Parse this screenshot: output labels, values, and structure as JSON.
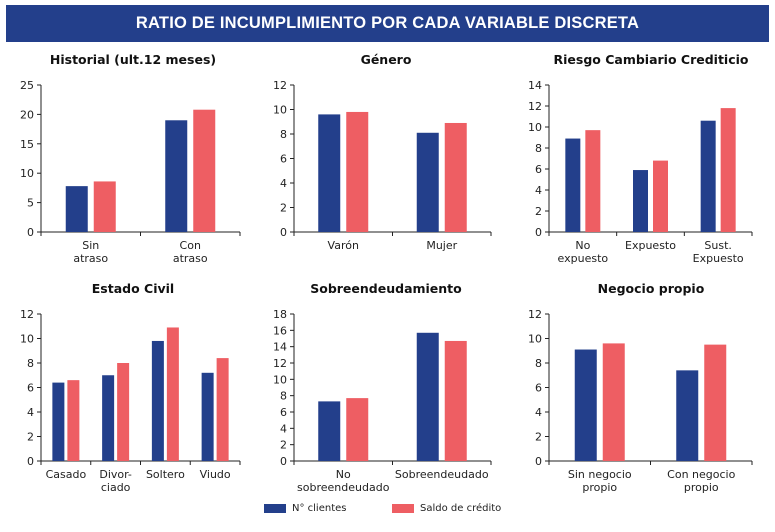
{
  "header": {
    "title": "RATIO DE INCUMPLIMIENTO POR CADA VARIABLE DISCRETA"
  },
  "legend": {
    "series1": "N° clientes",
    "series2": "Saldo de crédito",
    "color1": "#233f8b",
    "color2": "#ee5e63"
  },
  "chart_data": [
    {
      "type": "bar",
      "title": "Historial (ult.12 meses)",
      "categories": [
        [
          "Sin",
          "atraso"
        ],
        [
          "Con",
          "atraso"
        ]
      ],
      "yticks": [
        "0",
        "5",
        "10",
        "15",
        "20",
        "25"
      ],
      "ylim": [
        0,
        25
      ],
      "series": [
        {
          "name": "N° clientes",
          "values": [
            7.8,
            19.0
          ]
        },
        {
          "name": "Saldo de crédito",
          "values": [
            8.6,
            20.8
          ]
        }
      ]
    },
    {
      "type": "bar",
      "title": "Género",
      "categories": [
        [
          "Varón"
        ],
        [
          "Mujer"
        ]
      ],
      "yticks": [
        "0",
        "2",
        "4",
        "6",
        "8",
        "10",
        "12"
      ],
      "ylim": [
        0,
        12
      ],
      "series": [
        {
          "name": "N° clientes",
          "values": [
            9.6,
            8.1
          ]
        },
        {
          "name": "Saldo de crédito",
          "values": [
            9.8,
            8.9
          ]
        }
      ]
    },
    {
      "type": "bar",
      "title": "Riesgo Cambiario Crediticio",
      "categories": [
        [
          "No",
          "expuesto"
        ],
        [
          "Expuesto"
        ],
        [
          "Sust.",
          "Expuesto"
        ]
      ],
      "yticks": [
        "0",
        "2",
        "4",
        "6",
        "8",
        "10",
        "12",
        "14"
      ],
      "ylim": [
        0,
        14
      ],
      "series": [
        {
          "name": "N° clientes",
          "values": [
            8.9,
            5.9,
            10.6
          ]
        },
        {
          "name": "Saldo de crédito",
          "values": [
            9.7,
            6.8,
            11.8
          ]
        }
      ]
    },
    {
      "type": "bar",
      "title": "Estado Civil",
      "categories": [
        [
          "Casado"
        ],
        [
          "Divor-",
          "ciado"
        ],
        [
          "Soltero"
        ],
        [
          "Viudo"
        ]
      ],
      "yticks": [
        "0",
        "2",
        "4",
        "6",
        "8",
        "10",
        "12"
      ],
      "ylim": [
        0,
        12
      ],
      "series": [
        {
          "name": "N° clientes",
          "values": [
            6.4,
            7.0,
            9.8,
            7.2
          ]
        },
        {
          "name": "Saldo de crédito",
          "values": [
            6.6,
            8.0,
            10.9,
            8.4
          ]
        }
      ]
    },
    {
      "type": "bar",
      "title": "Sobreendeudamiento",
      "categories": [
        [
          "No",
          "sobreendeudado"
        ],
        [
          "Sobreendeudado"
        ]
      ],
      "yticks": [
        "0",
        "2",
        "4",
        "6",
        "8",
        "10",
        "12",
        "14",
        "16",
        "18"
      ],
      "ylim": [
        0,
        18
      ],
      "series": [
        {
          "name": "N° clientes",
          "values": [
            7.3,
            15.7
          ]
        },
        {
          "name": "Saldo de crédito",
          "values": [
            7.7,
            14.7
          ]
        }
      ]
    },
    {
      "type": "bar",
      "title": "Negocio propio",
      "categories": [
        [
          "Sin negocio",
          "propio"
        ],
        [
          "Con negocio",
          "propio"
        ]
      ],
      "yticks": [
        "0",
        "2",
        "4",
        "6",
        "8",
        "10",
        "12"
      ],
      "ylim": [
        0,
        12
      ],
      "series": [
        {
          "name": "N° clientes",
          "values": [
            9.1,
            7.4
          ]
        },
        {
          "name": "Saldo de crédito",
          "values": [
            9.6,
            9.5
          ]
        }
      ]
    }
  ]
}
